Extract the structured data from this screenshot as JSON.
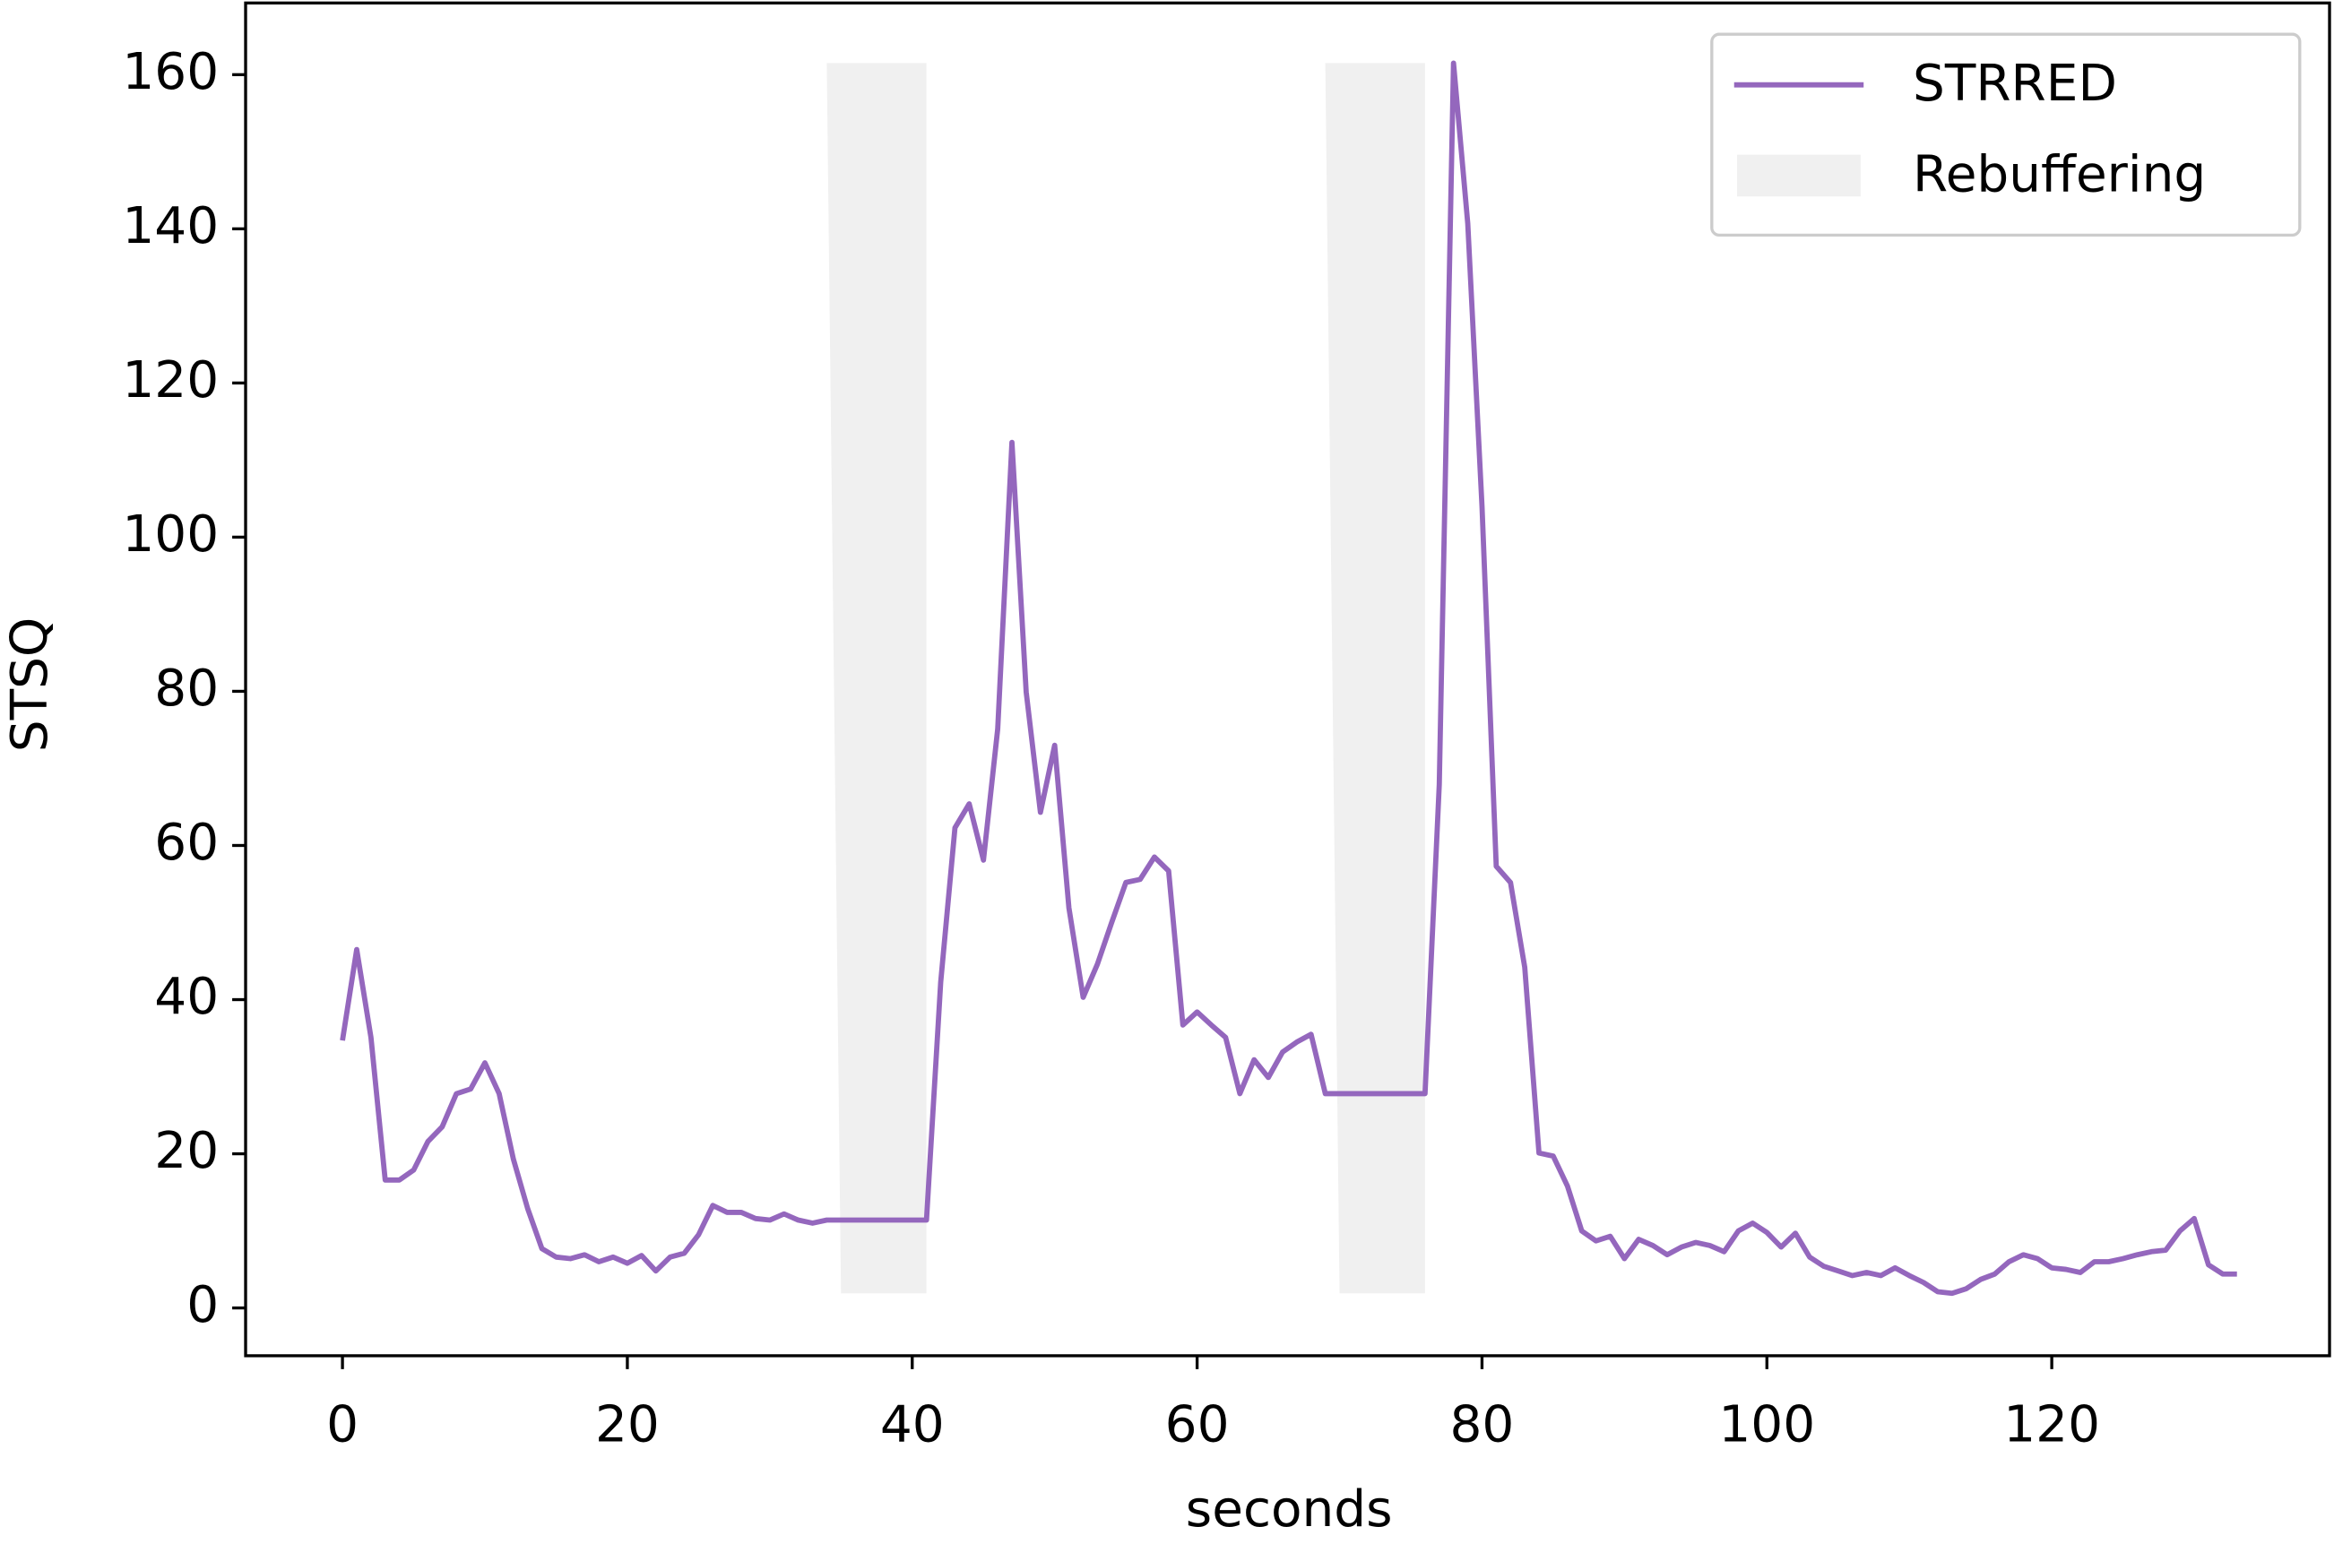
{
  "chart_data": {
    "type": "line",
    "xlabel": "seconds",
    "ylabel": "STSQ",
    "x": [
      0,
      1,
      2,
      3,
      4,
      5,
      6,
      7,
      8,
      9,
      10,
      11,
      12,
      13,
      14,
      15,
      16,
      17,
      18,
      19,
      20,
      21,
      22,
      23,
      24,
      25,
      26,
      27,
      28,
      29,
      30,
      31,
      32,
      33,
      34,
      35,
      36,
      37,
      38,
      39,
      40,
      41,
      42,
      43,
      44,
      45,
      46,
      47,
      48,
      49,
      50,
      51,
      52,
      53,
      54,
      55,
      56,
      57,
      58,
      59,
      60,
      61,
      62,
      63,
      64,
      65,
      66,
      67,
      68,
      69,
      70,
      71,
      72,
      73,
      74,
      75,
      76,
      77,
      78,
      79,
      80,
      81,
      82,
      83,
      84,
      85,
      86,
      87,
      88,
      89,
      90,
      91,
      92,
      93,
      94,
      95,
      96,
      97,
      98,
      99,
      100,
      101,
      102,
      103,
      104,
      105,
      106,
      107,
      108,
      109,
      110,
      111,
      112,
      113,
      114,
      115,
      116,
      117,
      118,
      119,
      120,
      121,
      122,
      123,
      124,
      125,
      126,
      127,
      128,
      129,
      130,
      131,
      132,
      133
    ],
    "series": [
      {
        "name": "STRRED",
        "color": "#9467bd",
        "values": [
          34.7,
          46.5,
          35.1,
          16.6,
          16.6,
          17.9,
          21.6,
          23.5,
          27.8,
          28.4,
          31.8,
          27.8,
          19.3,
          12.9,
          7.7,
          6.6,
          6.4,
          6.9,
          6.0,
          6.6,
          5.8,
          6.8,
          4.8,
          6.6,
          7.1,
          9.5,
          13.3,
          12.4,
          12.4,
          11.6,
          11.4,
          12.2,
          11.4,
          11.0,
          11.4,
          11.4,
          11.4,
          11.4,
          11.4,
          11.4,
          11.4,
          11.4,
          42.3,
          62.3,
          65.4,
          58.1,
          75.1,
          112.3,
          79.9,
          64.3,
          73.0,
          51.9,
          40.3,
          44.6,
          50.0,
          55.2,
          55.6,
          58.5,
          56.7,
          36.7,
          38.4,
          36.7,
          35.1,
          27.8,
          32.2,
          29.9,
          33.2,
          34.5,
          35.5,
          27.8,
          27.8,
          27.8,
          27.8,
          27.8,
          27.8,
          27.8,
          27.8,
          67.9,
          161.5,
          140.7,
          104.0,
          57.3,
          55.2,
          44.2,
          20.1,
          19.7,
          15.8,
          10.0,
          8.7,
          9.3,
          6.4,
          8.9,
          8.1,
          6.9,
          7.9,
          8.5,
          8.1,
          7.3,
          10.0,
          11.0,
          9.8,
          7.9,
          9.7,
          6.6,
          5.4,
          4.8,
          4.2,
          4.6,
          4.2,
          5.2,
          4.2,
          3.3,
          2.1,
          1.9,
          2.5,
          3.7,
          4.4,
          6.0,
          6.9,
          6.4,
          5.2,
          5.0,
          4.6,
          6.0,
          6.0,
          6.4,
          6.9,
          7.3,
          7.5,
          10.0,
          11.6,
          5.6,
          4.4,
          4.4
        ]
      }
    ],
    "regions": {
      "name": "Rebuffering",
      "color": "#f0f0f0",
      "polygons": [
        {
          "x": [
            34,
            41,
            41,
            35
          ],
          "y": [
            161.5,
            161.5,
            1.9,
            1.9
          ]
        },
        {
          "x": [
            69,
            76,
            76,
            70
          ],
          "y": [
            161.5,
            161.5,
            1.9,
            1.9
          ]
        }
      ]
    },
    "xlim": [
      -6.8,
      139.5
    ],
    "ylim": [
      -6.2,
      169.3
    ],
    "xticks": [
      0,
      20,
      40,
      60,
      80,
      100,
      120
    ],
    "yticks": [
      0,
      20,
      40,
      60,
      80,
      100,
      120,
      140,
      160
    ],
    "legend": "upper right"
  }
}
